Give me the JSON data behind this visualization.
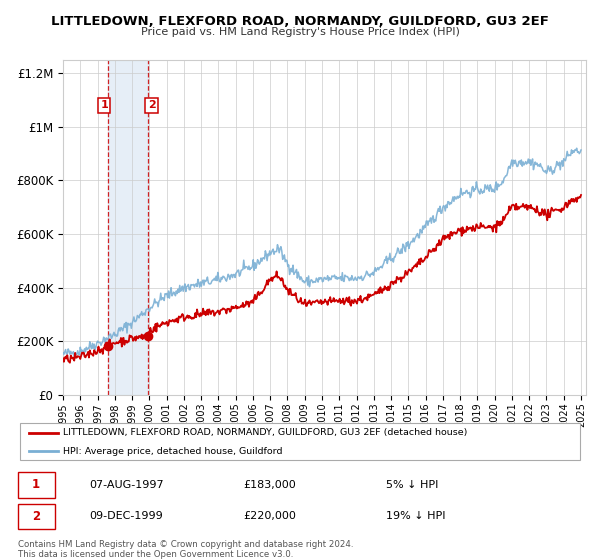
{
  "title": "LITTLEDOWN, FLEXFORD ROAD, NORMANDY, GUILDFORD, GU3 2EF",
  "subtitle": "Price paid vs. HM Land Registry's House Price Index (HPI)",
  "hpi_label": "HPI: Average price, detached house, Guildford",
  "property_label": "LITTLEDOWN, FLEXFORD ROAD, NORMANDY, GUILDFORD, GU3 2EF (detached house)",
  "red_color": "#cc0000",
  "blue_color": "#7aafd4",
  "sale1_date": "07-AUG-1997",
  "sale1_price": 183000,
  "sale1_pct": "5% ↓ HPI",
  "sale2_date": "09-DEC-1999",
  "sale2_price": 220000,
  "sale2_pct": "19% ↓ HPI",
  "sale1_x": 1997.6,
  "sale2_x": 1999.95,
  "highlight_xmin": 1997.6,
  "highlight_xmax": 1999.95,
  "xlim": [
    1995.0,
    2025.3
  ],
  "ylim": [
    0,
    1250000
  ],
  "yticks": [
    0,
    200000,
    400000,
    600000,
    800000,
    1000000,
    1200000
  ],
  "ytick_labels": [
    "£0",
    "£200K",
    "£400K",
    "£600K",
    "£800K",
    "£1M",
    "£1.2M"
  ],
  "copyright_text": "Contains HM Land Registry data © Crown copyright and database right 2024.\nThis data is licensed under the Open Government Licence v3.0."
}
